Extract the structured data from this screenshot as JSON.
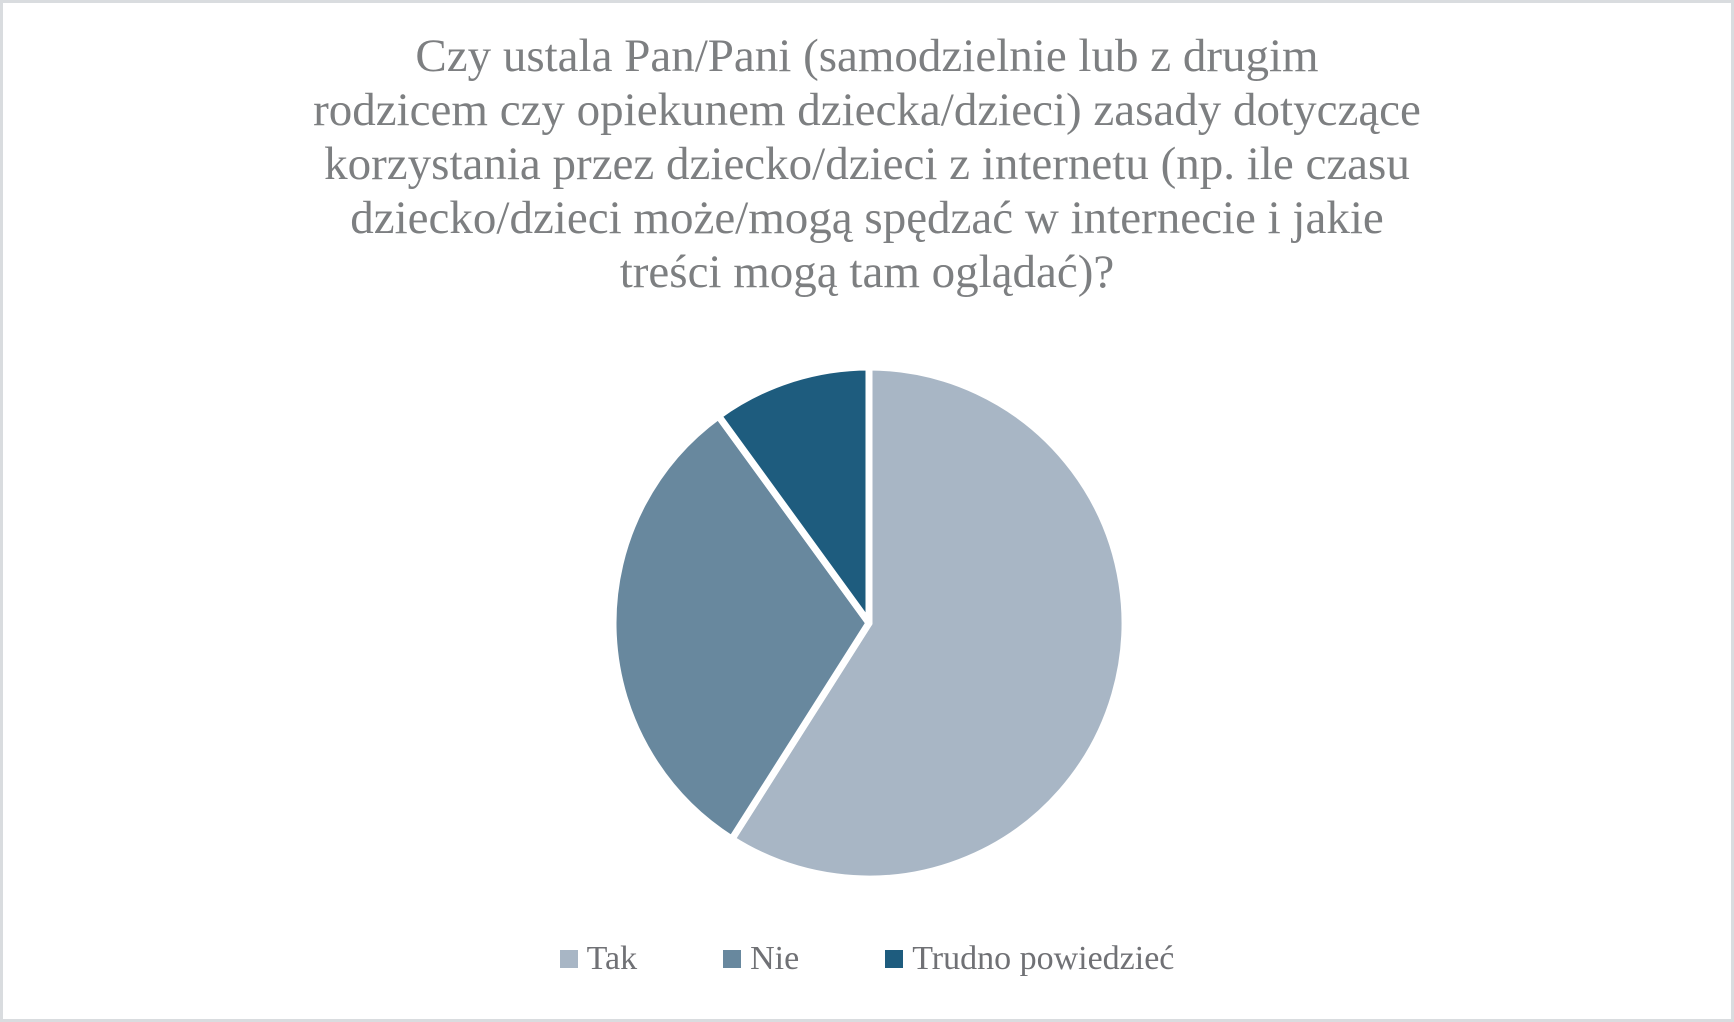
{
  "chart_data": {
    "type": "pie",
    "title": "Czy ustala Pan/Pani (samodzielnie lub z drugim rodzicem czy opiekunem dziecka/dzieci) zasady dotyczące korzystania przez dziecko/dzieci z internetu (np. ile czasu dziecko/dzieci może/mogą spędzać w internecie i jakie treści mogą tam oglądać)?",
    "title_lines": [
      "Czy ustala Pan/Pani (samodzielnie lub z drugim",
      "rodzicem czy opiekunem dziecka/dzieci) zasady dotyczące",
      "korzystania przez dziecko/dzieci z internetu (np. ile czasu",
      "dziecko/dzieci może/mogą spędzać w internecie i jakie",
      "treści mogą tam oglądać)?"
    ],
    "categories": [
      "Tak",
      "Nie",
      "Trudno powiedzieć"
    ],
    "values": [
      59,
      31,
      10
    ],
    "unit": "percent",
    "colors": [
      "#a8b6c5",
      "#68889e",
      "#1e5c7e"
    ],
    "start_angle_deg": 0,
    "direction": "clockwise",
    "slice_border_color": "#ffffff",
    "data_labels": "none",
    "legend_position": "bottom",
    "title_color": "#7d7f81",
    "legend_text_color": "#707175",
    "background_color": "#ffffff",
    "frame_border_color": "#d9dcdf"
  }
}
